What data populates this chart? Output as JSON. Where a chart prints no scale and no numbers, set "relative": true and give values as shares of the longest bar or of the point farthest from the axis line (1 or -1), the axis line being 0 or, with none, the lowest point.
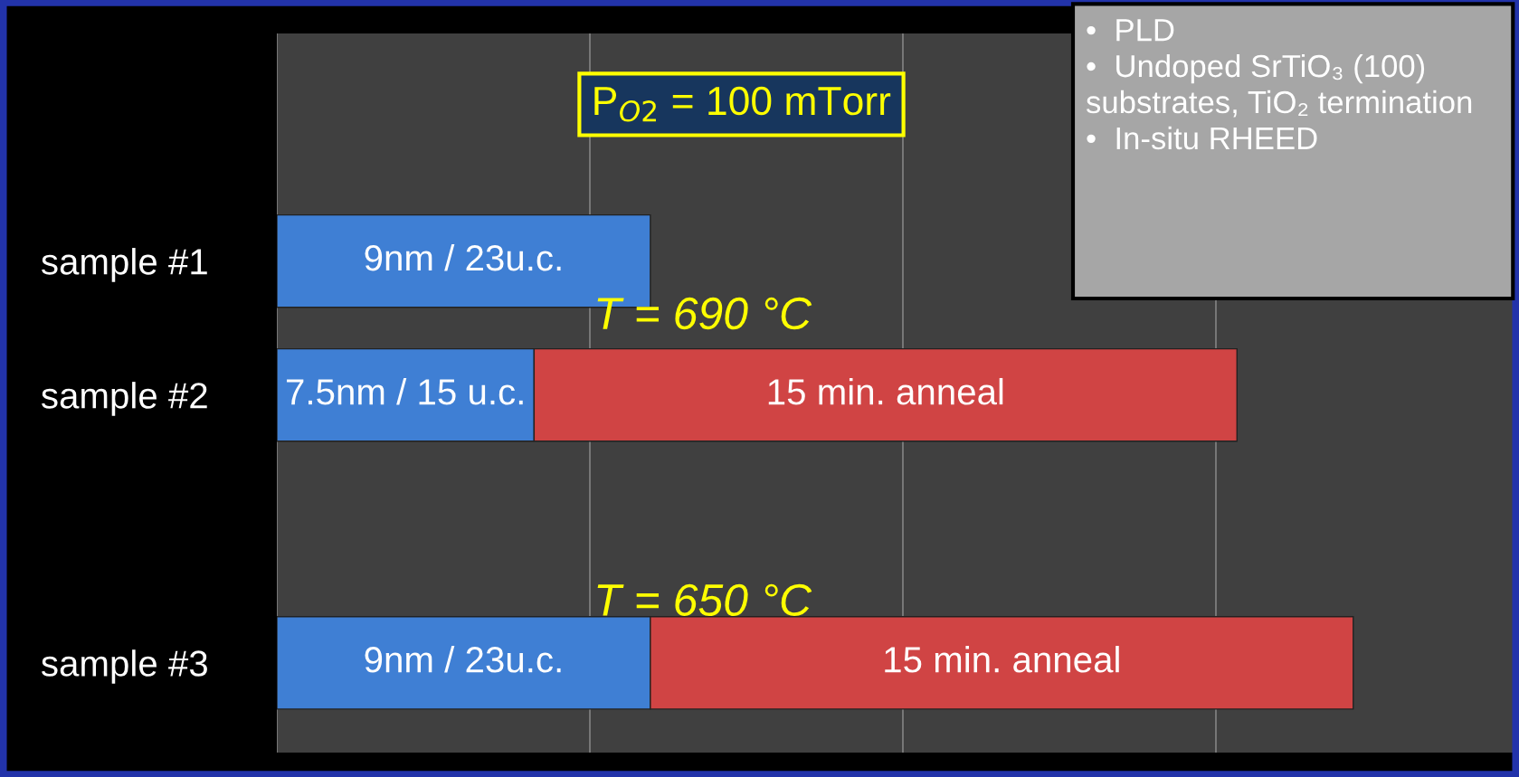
{
  "chart_data": {
    "type": "bar",
    "orientation": "horizontal",
    "stacked": true,
    "relative": true,
    "grid": "x",
    "tick_labels": "y",
    "categories": [
      "sample #1",
      "sample #2",
      null,
      "sample #3"
    ],
    "series": [
      {
        "color": "#3f7fd4",
        "values": [
          0.347,
          0.239,
          null,
          0.347
        ]
      },
      {
        "color": "#d04444",
        "values": [
          null,
          0.653,
          null,
          0.653
        ]
      }
    ],
    "annotations": [
      "P$_{O2}$ = 100 mTorr",
      "T = 690 °C",
      "T = 650 °C",
      "•  PLD",
      "•  Undoped SrTiO₃ (100) substrates, TiO₂ termination",
      "•  In-situ RHEED",
      "9nm / 23u.c.",
      "7.5nm / 15 u.c.",
      "15 min. anneal",
      "9nm / 23u.c.",
      "15 min. anneal"
    ]
  }
}
